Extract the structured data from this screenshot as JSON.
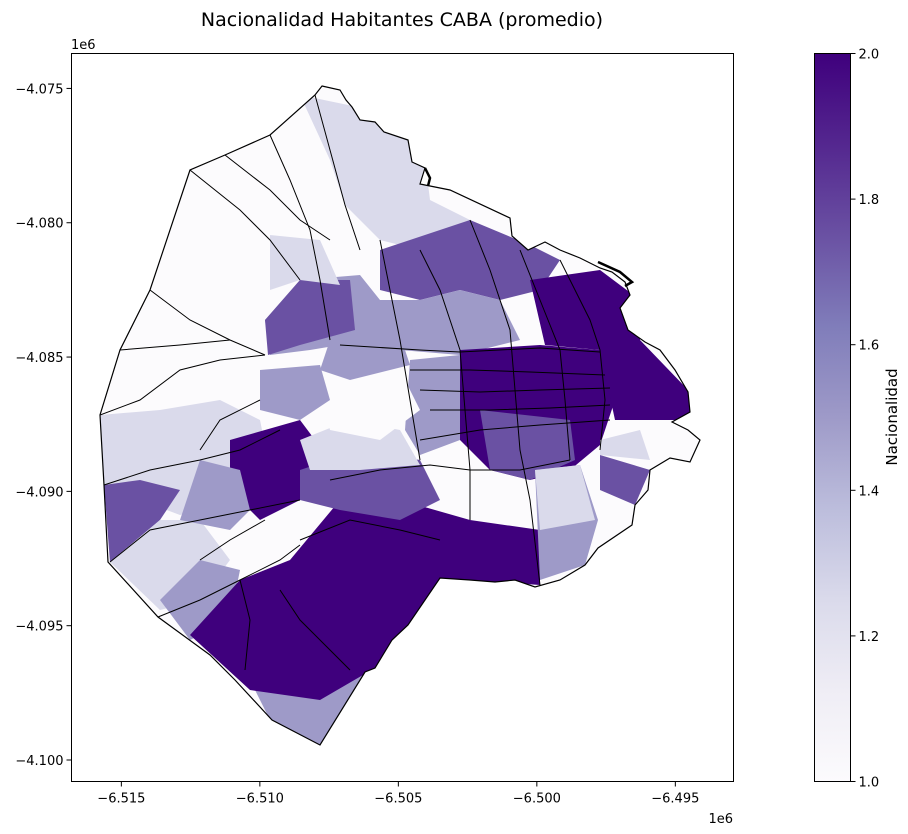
{
  "chart_data": {
    "type": "choropleth",
    "title": "Nacionalidad Habitantes CABA (promedio)",
    "x_offset_label": "1e6",
    "y_offset_label": "1e6",
    "xlim": [
      -6.5168,
      -6.4929
    ],
    "ylim": [
      -4.1008,
      -4.0737
    ],
    "x_ticks": [
      -6.515,
      -6.51,
      -6.505,
      -6.5,
      -6.495
    ],
    "x_tick_labels": [
      "−6.515",
      "−6.510",
      "−6.505",
      "−6.500",
      "−6.495"
    ],
    "y_ticks": [
      -4.075,
      -4.08,
      -4.085,
      -4.09,
      -4.095,
      -4.1
    ],
    "y_tick_labels": [
      "−4.075",
      "−4.080",
      "−4.085",
      "−4.090",
      "−4.095",
      "−4.100"
    ],
    "colorbar": {
      "label": "Nacionalidad",
      "colormap": "Purples",
      "range": [
        1.0,
        2.0
      ],
      "ticks": [
        1.0,
        1.2,
        1.4,
        1.6,
        1.8,
        2.0
      ],
      "tick_labels": [
        "1.0",
        "1.2",
        "1.4",
        "1.6",
        "1.8",
        "2.0"
      ]
    },
    "outline_color": "#000000",
    "grid": false
  }
}
